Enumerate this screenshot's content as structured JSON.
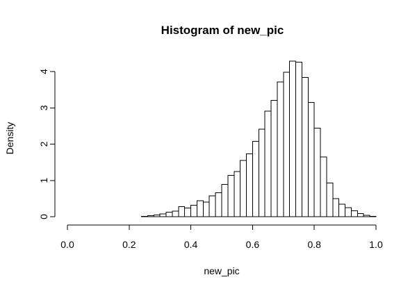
{
  "chart_data": {
    "type": "bar",
    "title": "Histogram of new_pic",
    "xlabel": "new_pic",
    "ylabel": "Density",
    "xlim": [
      0,
      1
    ],
    "ylim": [
      0,
      4.3
    ],
    "x_ticks": [
      0.0,
      0.2,
      0.4,
      0.6,
      0.8,
      1.0
    ],
    "x_tick_labels": [
      "0.0",
      "0.2",
      "0.4",
      "0.6",
      "0.8",
      "1.0"
    ],
    "y_ticks": [
      0,
      1,
      2,
      3,
      4
    ],
    "y_tick_labels": [
      "0",
      "1",
      "2",
      "3",
      "4"
    ],
    "bin_width": 0.02,
    "bin_starts": [
      0.0,
      0.02,
      0.04,
      0.06,
      0.08,
      0.1,
      0.12,
      0.14,
      0.16,
      0.18,
      0.2,
      0.22,
      0.24,
      0.26,
      0.28,
      0.3,
      0.32,
      0.34,
      0.36,
      0.38,
      0.4,
      0.42,
      0.44,
      0.46,
      0.48,
      0.5,
      0.52,
      0.54,
      0.56,
      0.58,
      0.6,
      0.62,
      0.64,
      0.66,
      0.68,
      0.7,
      0.72,
      0.74,
      0.76,
      0.78,
      0.8,
      0.82,
      0.84,
      0.86,
      0.88,
      0.9,
      0.92,
      0.94,
      0.96,
      0.98
    ],
    "values": [
      0,
      0,
      0,
      0,
      0,
      0,
      0,
      0,
      0,
      0,
      0,
      0,
      0.01,
      0.03,
      0.05,
      0.08,
      0.12,
      0.15,
      0.28,
      0.24,
      0.32,
      0.44,
      0.4,
      0.57,
      0.66,
      0.89,
      1.14,
      1.24,
      1.55,
      1.73,
      2.08,
      2.41,
      2.91,
      3.21,
      3.71,
      3.98,
      4.29,
      4.26,
      3.84,
      3.15,
      2.44,
      1.65,
      0.93,
      0.5,
      0.34,
      0.25,
      0.16,
      0.09,
      0.04,
      0.01
    ],
    "grid": false
  }
}
